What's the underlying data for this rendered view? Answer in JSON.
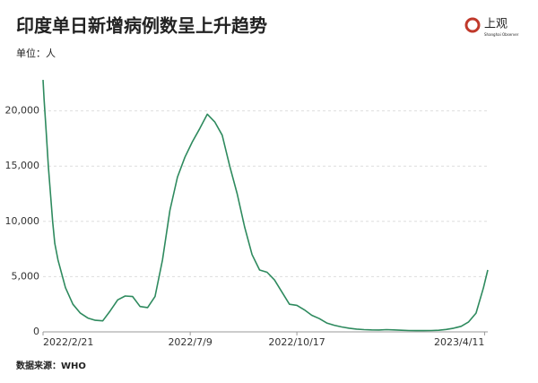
{
  "chart_data": {
    "type": "line",
    "title": "印度单日新增病例数呈上升趋势",
    "unit_label": "单位：人",
    "source": "数据来源：WHO",
    "logo": "上观",
    "logo_subtitle": "Shanghai Observer",
    "x": [
      "2022/2/21",
      "2022/2/22",
      "2022/2/24",
      "2022/2/26",
      "2022/2/28",
      "2022/3/2",
      "2022/3/4",
      "2022/3/7",
      "2022/3/14",
      "2022/3/21",
      "2022/3/28",
      "2022/4/4",
      "2022/4/11",
      "2022/4/18",
      "2022/4/25",
      "2022/5/2",
      "2022/5/9",
      "2022/5/16",
      "2022/5/23",
      "2022/5/30",
      "2022/6/6",
      "2022/6/13",
      "2022/6/20",
      "2022/6/27",
      "2022/7/4",
      "2022/7/11",
      "2022/7/18",
      "2022/7/25",
      "2022/8/1",
      "2022/8/8",
      "2022/8/15",
      "2022/8/22",
      "2022/8/29",
      "2022/9/5",
      "2022/9/12",
      "2022/9/19",
      "2022/9/26",
      "2022/10/3",
      "2022/10/10",
      "2022/10/17",
      "2022/10/24",
      "2022/10/31",
      "2022/11/7",
      "2022/11/14",
      "2022/11/21",
      "2022/11/28",
      "2022/12/5",
      "2022/12/12",
      "2022/12/19",
      "2022/12/26",
      "2023/1/2",
      "2023/1/9",
      "2023/1/16",
      "2023/1/23",
      "2023/1/30",
      "2023/2/6",
      "2023/2/13",
      "2023/2/20",
      "2023/2/27",
      "2023/3/6",
      "2023/3/13",
      "2023/3/20",
      "2023/3/27",
      "2023/4/3",
      "2023/4/10",
      "2023/4/14"
    ],
    "series": [
      {
        "name": "单日新增病例",
        "color": "#2e8a5e",
        "values": [
          22800,
          21000,
          18000,
          15000,
          12500,
          10000,
          8000,
          6500,
          4000,
          2500,
          1700,
          1250,
          1050,
          1000,
          1900,
          2900,
          3250,
          3200,
          2300,
          2200,
          3200,
          6500,
          11000,
          14000,
          15800,
          17200,
          18400,
          19700,
          19000,
          17800,
          15000,
          12500,
          9500,
          7000,
          5600,
          5400,
          4700,
          3600,
          2500,
          2400,
          2000,
          1500,
          1200,
          800,
          600,
          450,
          330,
          250,
          200,
          180,
          170,
          200,
          180,
          150,
          120,
          110,
          110,
          120,
          150,
          220,
          330,
          500,
          900,
          1700,
          4000,
          5600
        ]
      }
    ],
    "xlim": [
      "2022/2/21",
      "2023/4/14"
    ],
    "xticks": [
      "2022/2/21",
      "2022/7/9",
      "2022/10/17",
      "2023/4/11"
    ],
    "ylim": [
      0,
      25000
    ],
    "yticks": [
      0,
      {
        "value": 5000,
        "label": "5,000"
      },
      {
        "value": 10000,
        "label": "10,000"
      },
      {
        "value": 15000,
        "label": "15,000"
      },
      {
        "value": 20000,
        "label": "20,000"
      }
    ],
    "grid": true
  }
}
